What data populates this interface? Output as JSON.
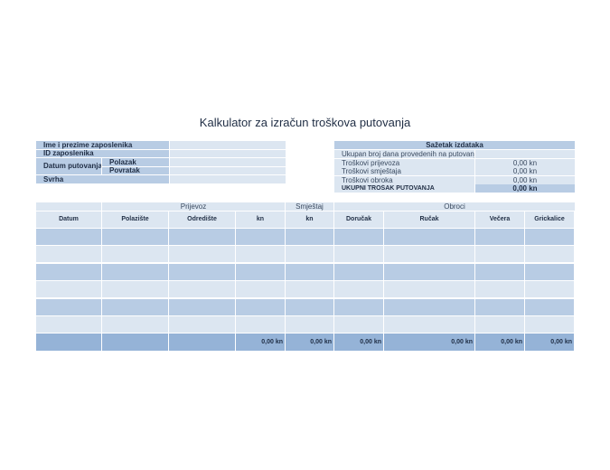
{
  "title": "Kalkulator za izračun troškova putovanja",
  "employee": {
    "name_label": "Ime i prezime zaposlenika",
    "id_label": "ID zaposlenika",
    "date_label": "Datum putovanja",
    "departure_label": "Polazak",
    "return_label": "Povratak",
    "purpose_label": "Svrha"
  },
  "summary": {
    "header": "Sažetak izdataka",
    "rows": [
      {
        "label": "Ukupan broj dana provedenih na putovanju",
        "value": ""
      },
      {
        "label": "Troškovi prijevoza",
        "value": "0,00 kn"
      },
      {
        "label": "Troškovi smještaja",
        "value": "0,00 kn"
      },
      {
        "label": "Troškovi obroka",
        "value": "0,00 kn"
      }
    ],
    "total_label": "UKUPNI TROŠAK PUTOVANJA",
    "total_value": "0,00 kn"
  },
  "table": {
    "groups": {
      "transport": "Prijevoz",
      "lodging": "Smještaj",
      "meals": "Obroci"
    },
    "columns": [
      "Datum",
      "Polazište",
      "Odredište",
      "kn",
      "kn",
      "Doručak",
      "Ručak",
      "Večera",
      "Grickalice"
    ],
    "totals": [
      "",
      "",
      "",
      "0,00 kn",
      "0,00 kn",
      "0,00 kn",
      "0,00 kn",
      "0,00 kn",
      "0,00 kn"
    ]
  }
}
